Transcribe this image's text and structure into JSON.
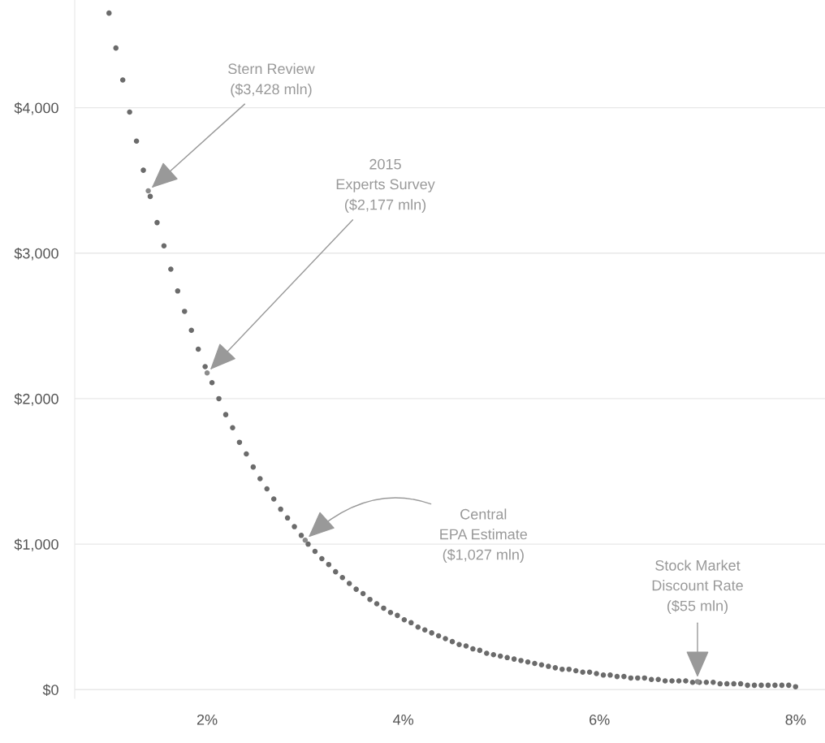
{
  "chart_data": {
    "type": "scatter",
    "marker": "circle",
    "grid": "y",
    "xlim": [
      0.65,
      8.3
    ],
    "ylim": [
      -60,
      4740
    ],
    "xticks": [
      {
        "value": 2,
        "label": "2%"
      },
      {
        "value": 4,
        "label": "4%"
      },
      {
        "value": 6,
        "label": "6%"
      },
      {
        "value": 8,
        "label": "8%"
      }
    ],
    "yticks": [
      {
        "value": 0,
        "label": "$0"
      },
      {
        "value": 1000,
        "label": "$1,000"
      },
      {
        "value": 2000,
        "label": "$2,000"
      },
      {
        "value": 3000,
        "label": "$3,000"
      },
      {
        "value": 4000,
        "label": "$4,000"
      }
    ],
    "series": [
      {
        "color": "#6b6b6b",
        "x": [
          1,
          1.07,
          1.14,
          1.21,
          1.28,
          1.35,
          1.42,
          1.49,
          1.56,
          1.63,
          1.7,
          1.77,
          1.84,
          1.91,
          1.98,
          2.05,
          2.12,
          2.19,
          2.26,
          2.33,
          2.4,
          2.47,
          2.54,
          2.61,
          2.68,
          2.75,
          2.82,
          2.89,
          2.96,
          3.03,
          3.1,
          3.17,
          3.24,
          3.31,
          3.38,
          3.45,
          3.52,
          3.59,
          3.66,
          3.73,
          3.8,
          3.87,
          3.94,
          4.01,
          4.08,
          4.15,
          4.22,
          4.29,
          4.36,
          4.43,
          4.5,
          4.57,
          4.64,
          4.71,
          4.78,
          4.85,
          4.92,
          4.99,
          5.06,
          5.13,
          5.2,
          5.27,
          5.34,
          5.41,
          5.48,
          5.55,
          5.62,
          5.69,
          5.76,
          5.83,
          5.9,
          5.97,
          6.04,
          6.11,
          6.18,
          6.25,
          6.32,
          6.39,
          6.46,
          6.53,
          6.6,
          6.67,
          6.74,
          6.81,
          6.88,
          6.95,
          7.02,
          7.09,
          7.16,
          7.23,
          7.3,
          7.37,
          7.44,
          7.51,
          7.58,
          7.65,
          7.72,
          7.79,
          7.86,
          7.93,
          8.0
        ],
        "values": [
          4650,
          4410,
          4190,
          3970,
          3770,
          3570,
          3390,
          3210,
          3050,
          2890,
          2740,
          2600,
          2470,
          2340,
          2220,
          2110,
          2000,
          1890,
          1800,
          1700,
          1620,
          1530,
          1450,
          1380,
          1310,
          1240,
          1180,
          1120,
          1060,
          1000,
          950,
          900,
          860,
          810,
          770,
          730,
          690,
          660,
          620,
          590,
          560,
          530,
          510,
          480,
          460,
          430,
          410,
          390,
          370,
          350,
          330,
          310,
          300,
          280,
          270,
          250,
          240,
          230,
          220,
          210,
          200,
          190,
          180,
          170,
          160,
          150,
          140,
          140,
          130,
          120,
          120,
          110,
          100,
          100,
          90,
          90,
          80,
          80,
          80,
          70,
          70,
          60,
          60,
          60,
          60,
          50,
          50,
          50,
          50,
          40,
          40,
          40,
          40,
          30,
          30,
          30,
          30,
          30,
          30,
          30,
          20
        ]
      },
      {
        "color": "#8c8c8c",
        "x": [
          1.4,
          2,
          3,
          7
        ],
        "values": [
          3428,
          2177,
          1027,
          55
        ]
      }
    ],
    "annotations": [
      {
        "text": "Stern Review\n($3,428 mln)",
        "x": 1.4,
        "y": 3428
      },
      {
        "text": "2015\nExperts Survey\n($2,177 mln)",
        "x": 2,
        "y": 2177
      },
      {
        "text": "Central\nEPA Estimate\n($1,027 mln)",
        "x": 3,
        "y": 1027
      },
      {
        "text": "Stock Market\nDiscount Rate\n($55 mln)",
        "x": 7,
        "y": 55
      }
    ]
  }
}
